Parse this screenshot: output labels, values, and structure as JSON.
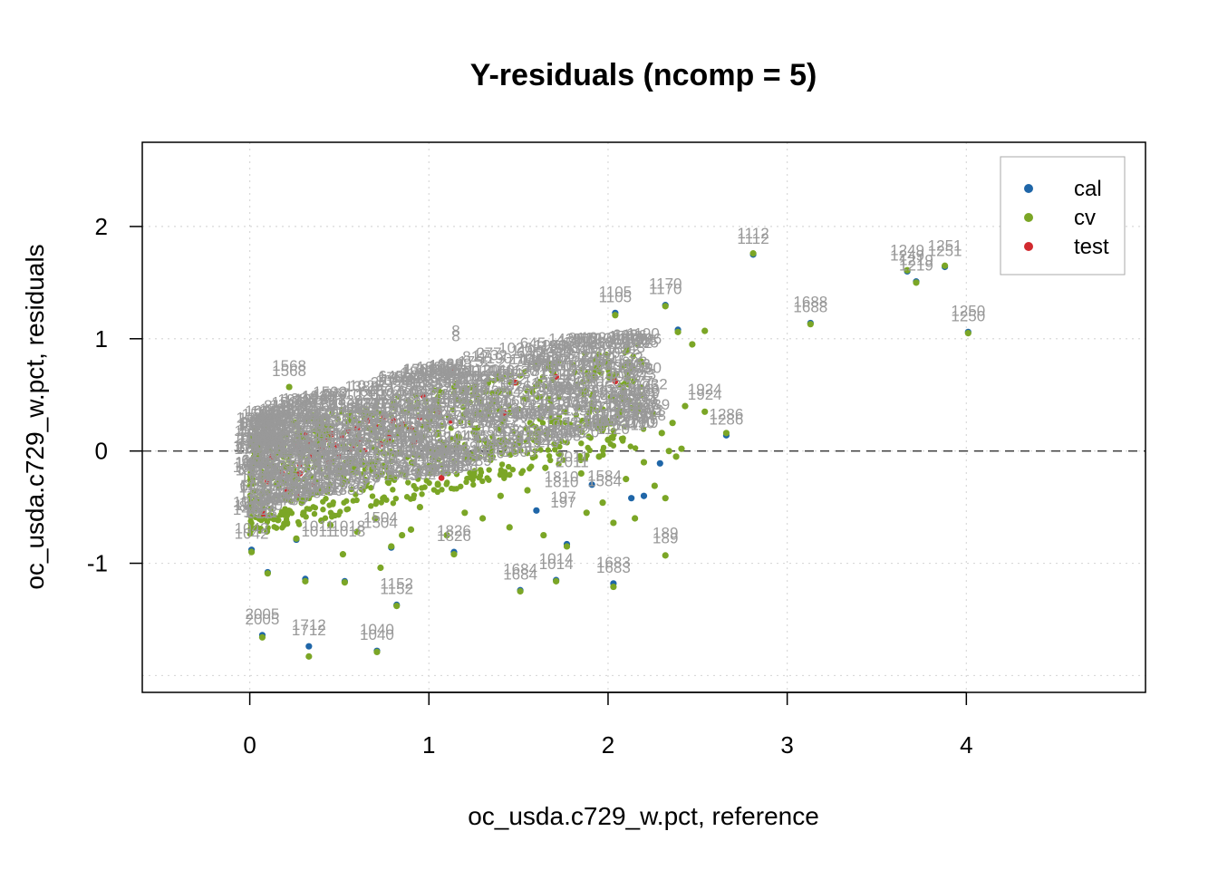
{
  "chart_data": {
    "type": "scatter",
    "title": "Y-residuals (ncomp = 5)",
    "xlabel": "oc_usda.c729_w.pct, reference",
    "ylabel": "oc_usda.c729_w.pct, residuals",
    "xlim": [
      -0.6,
      5.0
    ],
    "ylim": [
      -2.15,
      2.75
    ],
    "x_ticks": [
      0,
      1,
      2,
      3,
      4
    ],
    "y_ticks": [
      -1,
      0,
      1,
      2
    ],
    "grid": true,
    "zero_line": "dashed",
    "legend": {
      "placement": "top-right",
      "entries": [
        {
          "name": "cal",
          "color": "#1F66A8"
        },
        {
          "name": "cv",
          "color": "#7BA626"
        },
        {
          "name": "test",
          "color": "#D12A2F"
        }
      ]
    },
    "label_color": "#999999",
    "series": [
      {
        "name": "cal",
        "color": "#1F66A8",
        "points": [
          [
            2.81,
            1.75
          ],
          [
            3.67,
            1.6
          ],
          [
            3.72,
            1.51
          ],
          [
            3.88,
            1.64
          ],
          [
            4.01,
            1.06
          ],
          [
            3.13,
            1.14
          ],
          [
            2.04,
            1.23
          ],
          [
            2.32,
            1.3
          ],
          [
            2.39,
            1.08
          ],
          [
            2.66,
            0.14
          ],
          [
            0.07,
            -1.64
          ],
          [
            0.33,
            -1.74
          ],
          [
            0.71,
            -1.78
          ],
          [
            0.1,
            -1.08
          ],
          [
            0.31,
            -1.14
          ],
          [
            0.53,
            -1.16
          ],
          [
            1.51,
            -1.24
          ],
          [
            1.71,
            -1.15
          ],
          [
            2.03,
            -1.18
          ],
          [
            0.82,
            -1.37
          ],
          [
            0.01,
            -0.88
          ],
          [
            0.26,
            -0.79
          ],
          [
            0.79,
            -0.86
          ],
          [
            1.14,
            -0.9
          ],
          [
            1.77,
            -0.83
          ],
          [
            2.2,
            -0.4
          ],
          [
            2.29,
            -0.11
          ],
          [
            1.91,
            -0.3
          ],
          [
            1.6,
            -0.53
          ],
          [
            2.13,
            -0.42
          ]
        ],
        "labels": [
          {
            "x": 2.81,
            "y": 1.75,
            "text": "1112"
          },
          {
            "x": 3.67,
            "y": 1.6,
            "text": "1249"
          },
          {
            "x": 3.72,
            "y": 1.51,
            "text": "1219"
          },
          {
            "x": 3.88,
            "y": 1.64,
            "text": "1251"
          },
          {
            "x": 4.01,
            "y": 1.06,
            "text": "1250"
          },
          {
            "x": 3.13,
            "y": 1.14,
            "text": "1688"
          },
          {
            "x": 2.04,
            "y": 1.23,
            "text": "1105"
          },
          {
            "x": 2.32,
            "y": 1.3,
            "text": "1170"
          },
          {
            "x": 2.66,
            "y": 0.14,
            "text": "1286"
          },
          {
            "x": 0.07,
            "y": -1.64,
            "text": "2005"
          },
          {
            "x": 0.33,
            "y": -1.74,
            "text": "1712"
          },
          {
            "x": 0.71,
            "y": -1.78,
            "text": "1040"
          },
          {
            "x": 0.82,
            "y": -1.37,
            "text": "1152"
          },
          {
            "x": 1.51,
            "y": -1.24,
            "text": "1684"
          },
          {
            "x": 1.71,
            "y": -1.15,
            "text": "1014"
          },
          {
            "x": 2.03,
            "y": -1.18,
            "text": "1683"
          },
          {
            "x": 2.32,
            "y": -0.92,
            "text": "189"
          },
          {
            "x": 0.01,
            "y": -0.88,
            "text": "1042"
          },
          {
            "x": 1.14,
            "y": -0.9,
            "text": "1826"
          },
          {
            "x": 0.22,
            "y": 0.57,
            "text": "1568"
          },
          {
            "x": 1.98,
            "y": -0.41,
            "text": "1584"
          },
          {
            "x": 1.75,
            "y": -0.6,
            "text": "197"
          },
          {
            "x": 1.74,
            "y": -0.42,
            "text": "1810"
          },
          {
            "x": 1.8,
            "y": -0.24,
            "text": "2011"
          },
          {
            "x": 2.54,
            "y": 0.36,
            "text": "1924"
          },
          {
            "x": 1.15,
            "y": 0.88,
            "text": "8"
          },
          {
            "x": 0.38,
            "y": -0.86,
            "text": "1011"
          },
          {
            "x": 0.55,
            "y": -0.86,
            "text": "1018"
          },
          {
            "x": 0.73,
            "y": -0.78,
            "text": "1504"
          }
        ]
      },
      {
        "name": "cv",
        "color": "#7BA626",
        "points": [
          [
            2.81,
            1.76
          ],
          [
            3.67,
            1.61
          ],
          [
            3.72,
            1.5
          ],
          [
            3.88,
            1.65
          ],
          [
            4.01,
            1.05
          ],
          [
            3.13,
            1.13
          ],
          [
            2.04,
            1.21
          ],
          [
            2.32,
            1.29
          ],
          [
            2.39,
            1.06
          ],
          [
            2.54,
            1.07
          ],
          [
            2.47,
            0.95
          ],
          [
            2.66,
            0.16
          ],
          [
            2.54,
            0.35
          ],
          [
            0.07,
            -1.66
          ],
          [
            0.33,
            -1.83
          ],
          [
            0.71,
            -1.79
          ],
          [
            0.1,
            -1.09
          ],
          [
            0.31,
            -1.16
          ],
          [
            0.53,
            -1.17
          ],
          [
            1.51,
            -1.25
          ],
          [
            1.71,
            -1.16
          ],
          [
            2.03,
            -1.21
          ],
          [
            0.82,
            -1.38
          ],
          [
            0.01,
            -0.9
          ],
          [
            0.26,
            -0.78
          ],
          [
            0.79,
            -0.85
          ],
          [
            1.14,
            -0.92
          ],
          [
            1.77,
            -0.85
          ],
          [
            2.32,
            -0.93
          ],
          [
            0.22,
            0.57
          ],
          [
            0.73,
            -1.04
          ],
          [
            0.52,
            -0.92
          ],
          [
            2.03,
            -0.64
          ],
          [
            1.64,
            -0.75
          ],
          [
            1.97,
            -0.46
          ],
          [
            2.32,
            -0.42
          ],
          [
            2.26,
            -0.31
          ],
          [
            2.38,
            -0.05
          ],
          [
            2.34,
            0.0
          ],
          [
            2.41,
            0.02
          ],
          [
            2.3,
            0.16
          ],
          [
            2.25,
            0.33
          ],
          [
            2.2,
            -0.1
          ],
          [
            2.1,
            -0.25
          ],
          [
            1.4,
            -0.4
          ],
          [
            1.2,
            -0.55
          ],
          [
            1.3,
            -0.6
          ],
          [
            0.9,
            -0.7
          ],
          [
            0.6,
            -0.72
          ],
          [
            0.45,
            -0.66
          ],
          [
            0.15,
            -0.6
          ],
          [
            0.05,
            -0.45
          ],
          [
            1.55,
            -0.35
          ],
          [
            1.85,
            -0.2
          ],
          [
            1.95,
            -0.05
          ],
          [
            2.0,
            0.1
          ],
          [
            1.05,
            -0.3
          ],
          [
            0.95,
            -0.5
          ],
          [
            1.65,
            -0.15
          ],
          [
            1.25,
            -0.2
          ],
          [
            0.3,
            -0.55
          ],
          [
            0.7,
            -0.6
          ],
          [
            1.1,
            -0.75
          ],
          [
            1.88,
            -0.55
          ],
          [
            2.15,
            -0.6
          ],
          [
            0.4,
            -0.62
          ],
          [
            0.85,
            -0.75
          ],
          [
            1.45,
            -0.68
          ],
          [
            2.36,
            0.25
          ],
          [
            2.43,
            0.4
          ]
        ]
      },
      {
        "name": "test",
        "color": "#D12A2F",
        "points": [
          [
            0.08,
            -0.56
          ],
          [
            0.1,
            -0.27
          ],
          [
            0.12,
            -0.05
          ],
          [
            0.18,
            0.07
          ],
          [
            0.18,
            -0.2
          ],
          [
            0.2,
            -0.35
          ],
          [
            0.26,
            -0.39
          ],
          [
            0.27,
            0.04
          ],
          [
            0.28,
            -0.12
          ],
          [
            0.28,
            -0.2
          ],
          [
            0.31,
            0.16
          ],
          [
            0.34,
            0.08
          ],
          [
            0.35,
            -0.05
          ],
          [
            0.36,
            -0.3
          ],
          [
            0.4,
            0.02
          ],
          [
            0.42,
            0.1
          ],
          [
            0.44,
            -0.1
          ],
          [
            0.46,
            0.15
          ],
          [
            0.48,
            0.05
          ],
          [
            0.5,
            -0.05
          ],
          [
            0.52,
            0.12
          ],
          [
            0.55,
            0.18
          ],
          [
            0.57,
            0.02
          ],
          [
            0.6,
            0.2
          ],
          [
            0.62,
            0.1
          ],
          [
            0.64,
            0.0
          ],
          [
            0.66,
            0.27
          ],
          [
            0.7,
            0.22
          ],
          [
            0.73,
            0.06
          ],
          [
            0.75,
            0.3
          ],
          [
            0.8,
            0.27
          ],
          [
            0.85,
            0.24
          ],
          [
            0.9,
            0.2
          ],
          [
            0.95,
            0.3
          ],
          [
            0.97,
            0.49
          ],
          [
            1.05,
            0.35
          ],
          [
            1.07,
            -0.24
          ],
          [
            1.12,
            0.27
          ],
          [
            1.14,
            0.73
          ],
          [
            1.42,
            0.34
          ],
          [
            1.48,
            0.61
          ],
          [
            1.71,
            0.66
          ],
          [
            2.04,
            0.62
          ],
          [
            0.92,
            0.08
          ],
          [
            0.78,
            0.12
          ]
        ]
      }
    ]
  }
}
